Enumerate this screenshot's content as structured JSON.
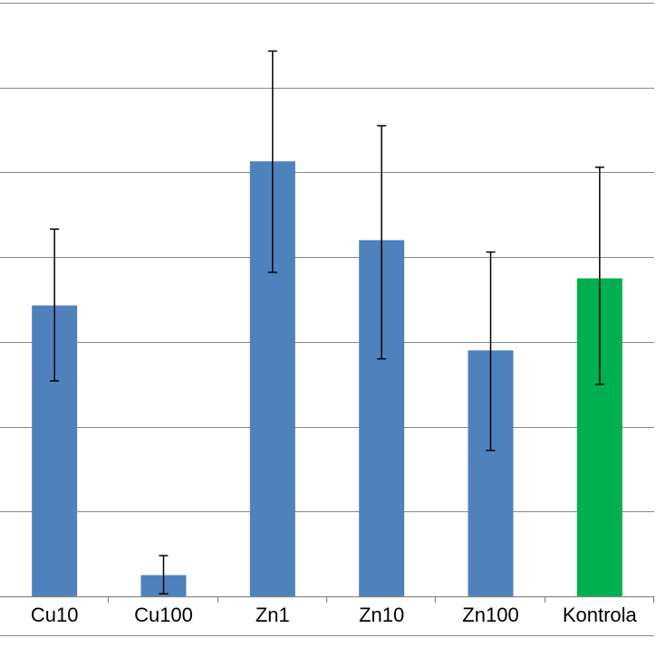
{
  "chart_data": {
    "type": "bar",
    "title": "",
    "xlabel": "",
    "ylabel": "",
    "categories": [
      "Cu10",
      "Cu100",
      "Zn1",
      "Zn10",
      "Zn100",
      "Kontrola"
    ],
    "values": [
      3.43,
      0.25,
      5.13,
      4.2,
      2.9,
      3.75
    ],
    "error_low": [
      2.54,
      0.03,
      3.82,
      2.8,
      1.72,
      2.5
    ],
    "error_high": [
      4.33,
      0.48,
      6.43,
      5.55,
      4.06,
      5.06
    ],
    "bar_colors": [
      "#4F81BD",
      "#4F81BD",
      "#4F81BD",
      "#4F81BD",
      "#4F81BD",
      "#00B050"
    ],
    "ylim": [
      0,
      7
    ],
    "grid": true,
    "colors": {
      "grid": "#868686",
      "axis": "#868686",
      "errorbar": "#000000"
    }
  }
}
